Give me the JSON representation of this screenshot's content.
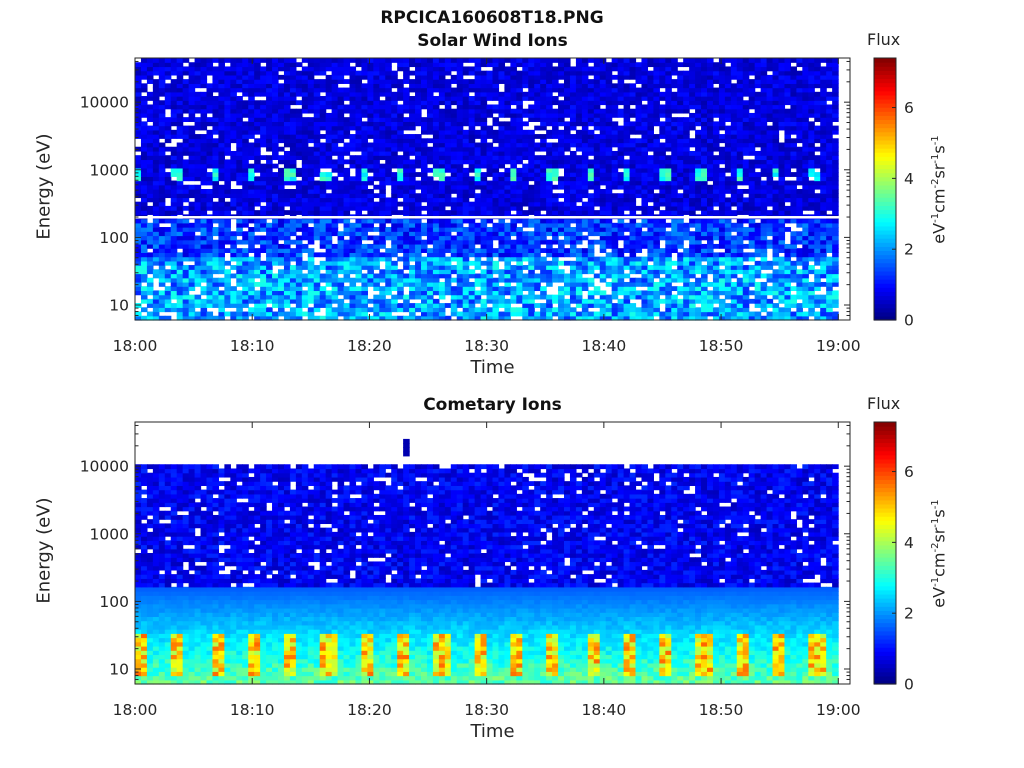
{
  "figure": {
    "title_line1": "RPCICA160608T18.PNG"
  },
  "colorbar": {
    "title": "Flux",
    "unit_parts": [
      "eV",
      "-1",
      "cm",
      "-2",
      "sr",
      "-1",
      "s",
      "-1"
    ],
    "colormap": "jet"
  },
  "chart_data": [
    {
      "type": "heatmap",
      "title": "Solar Wind Ions",
      "xlabel": "Time",
      "ylabel": "Energy (eV)",
      "x_tick_labels": [
        "18:00",
        "18:10",
        "18:20",
        "18:30",
        "18:40",
        "18:50",
        "19:00"
      ],
      "y_tick_labels": [
        "10",
        "100",
        "1000",
        "10000"
      ],
      "y_scale": "log",
      "ylim": [
        6,
        45000
      ],
      "x_range_minutes": [
        0,
        61
      ],
      "color_label": "Flux",
      "color_ticks": [
        0,
        2,
        4,
        6
      ],
      "color_range": [
        0,
        7.4
      ],
      "grid": false,
      "features": {
        "background_level": 0.7,
        "low_energy_level": 2.0,
        "peak_energy_eV": 850,
        "peak_level": 3.0,
        "peak_period_minutes": 3.2,
        "gap_line_energy_eV": 200
      }
    },
    {
      "type": "heatmap",
      "title": "Cometary Ions",
      "xlabel": "Time",
      "ylabel": "Energy (eV)",
      "x_tick_labels": [
        "18:00",
        "18:10",
        "18:20",
        "18:30",
        "18:40",
        "18:50",
        "19:00"
      ],
      "y_tick_labels": [
        "10",
        "100",
        "1000",
        "10000"
      ],
      "y_scale": "log",
      "ylim": [
        6,
        45000
      ],
      "x_range_minutes": [
        0,
        61
      ],
      "color_label": "Flux",
      "color_ticks": [
        0,
        2,
        4,
        6
      ],
      "color_range": [
        0,
        7.4
      ],
      "grid": false,
      "features": {
        "max_energy_eV": 11000,
        "background_level": 0.8,
        "low_energy_peak_eV": 12,
        "peak_level": 5.0,
        "peak_period_minutes": 3.2,
        "isolated_blip_minute": 23,
        "isolated_blip_energy_eV": 20000
      }
    }
  ]
}
